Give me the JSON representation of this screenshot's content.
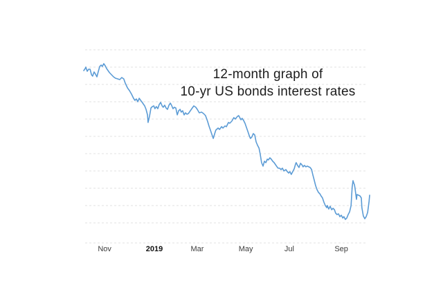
{
  "page": {
    "background": "#ffffff"
  },
  "chart_data": {
    "type": "line",
    "title_lines": [
      "12-month graph of",
      "10-yr US bonds interest rates"
    ],
    "xlabel": "",
    "ylabel": "",
    "legend": "none",
    "grid": "horizontal-dashed",
    "gridline_color": "#e2e2e2",
    "y_axis_labels_visible": false,
    "ylim": [
      1.168,
      3.4
    ],
    "y_gridlines": [
      3.4,
      3.2,
      3.0,
      2.8,
      2.6,
      2.4,
      2.2,
      2.0,
      1.8,
      1.6,
      1.4,
      1.168
    ],
    "x_ticks": [
      {
        "label": "Nov",
        "f": 0.073,
        "bold": false
      },
      {
        "label": "2019",
        "f": 0.247,
        "bold": true
      },
      {
        "label": "Mar",
        "f": 0.397,
        "bold": false
      },
      {
        "label": "May",
        "f": 0.567,
        "bold": false
      },
      {
        "label": "Jul",
        "f": 0.719,
        "bold": false
      },
      {
        "label": "Sep",
        "f": 0.901,
        "bold": false
      }
    ],
    "series": [
      {
        "name": "10-yr US bonds interest rate (%)",
        "color": "#5b9bd5",
        "points": [
          [
            0.0,
            3.16
          ],
          [
            0.005,
            3.184
          ],
          [
            0.007,
            3.2
          ],
          [
            0.012,
            3.152
          ],
          [
            0.017,
            3.176
          ],
          [
            0.022,
            3.176
          ],
          [
            0.027,
            3.112
          ],
          [
            0.031,
            3.096
          ],
          [
            0.036,
            3.144
          ],
          [
            0.041,
            3.12
          ],
          [
            0.046,
            3.088
          ],
          [
            0.051,
            3.152
          ],
          [
            0.056,
            3.208
          ],
          [
            0.061,
            3.224
          ],
          [
            0.065,
            3.208
          ],
          [
            0.07,
            3.24
          ],
          [
            0.075,
            3.216
          ],
          [
            0.08,
            3.184
          ],
          [
            0.085,
            3.16
          ],
          [
            0.09,
            3.136
          ],
          [
            0.097,
            3.112
          ],
          [
            0.104,
            3.088
          ],
          [
            0.111,
            3.072
          ],
          [
            0.119,
            3.064
          ],
          [
            0.126,
            3.056
          ],
          [
            0.133,
            3.08
          ],
          [
            0.14,
            3.064
          ],
          [
            0.145,
            3.016
          ],
          [
            0.153,
            2.96
          ],
          [
            0.16,
            2.928
          ],
          [
            0.167,
            2.888
          ],
          [
            0.174,
            2.84
          ],
          [
            0.179,
            2.816
          ],
          [
            0.184,
            2.832
          ],
          [
            0.189,
            2.8
          ],
          [
            0.194,
            2.84
          ],
          [
            0.199,
            2.816
          ],
          [
            0.203,
            2.8
          ],
          [
            0.208,
            2.776
          ],
          [
            0.213,
            2.752
          ],
          [
            0.218,
            2.712
          ],
          [
            0.223,
            2.648
          ],
          [
            0.225,
            2.56
          ],
          [
            0.23,
            2.632
          ],
          [
            0.235,
            2.728
          ],
          [
            0.24,
            2.744
          ],
          [
            0.245,
            2.752
          ],
          [
            0.249,
            2.72
          ],
          [
            0.254,
            2.744
          ],
          [
            0.259,
            2.72
          ],
          [
            0.264,
            2.768
          ],
          [
            0.269,
            2.792
          ],
          [
            0.274,
            2.752
          ],
          [
            0.278,
            2.736
          ],
          [
            0.283,
            2.76
          ],
          [
            0.288,
            2.728
          ],
          [
            0.293,
            2.712
          ],
          [
            0.298,
            2.76
          ],
          [
            0.303,
            2.784
          ],
          [
            0.307,
            2.76
          ],
          [
            0.312,
            2.72
          ],
          [
            0.317,
            2.736
          ],
          [
            0.322,
            2.728
          ],
          [
            0.327,
            2.648
          ],
          [
            0.332,
            2.696
          ],
          [
            0.337,
            2.712
          ],
          [
            0.341,
            2.68
          ],
          [
            0.346,
            2.696
          ],
          [
            0.351,
            2.648
          ],
          [
            0.356,
            2.672
          ],
          [
            0.361,
            2.656
          ],
          [
            0.366,
            2.664
          ],
          [
            0.373,
            2.696
          ],
          [
            0.378,
            2.72
          ],
          [
            0.385,
            2.752
          ],
          [
            0.392,
            2.736
          ],
          [
            0.397,
            2.712
          ],
          [
            0.404,
            2.672
          ],
          [
            0.412,
            2.68
          ],
          [
            0.419,
            2.664
          ],
          [
            0.426,
            2.64
          ],
          [
            0.433,
            2.576
          ],
          [
            0.438,
            2.52
          ],
          [
            0.443,
            2.472
          ],
          [
            0.448,
            2.424
          ],
          [
            0.453,
            2.376
          ],
          [
            0.458,
            2.432
          ],
          [
            0.462,
            2.472
          ],
          [
            0.47,
            2.496
          ],
          [
            0.475,
            2.48
          ],
          [
            0.482,
            2.512
          ],
          [
            0.487,
            2.496
          ],
          [
            0.494,
            2.52
          ],
          [
            0.499,
            2.512
          ],
          [
            0.506,
            2.56
          ],
          [
            0.511,
            2.552
          ],
          [
            0.518,
            2.576
          ],
          [
            0.525,
            2.616
          ],
          [
            0.53,
            2.6
          ],
          [
            0.538,
            2.632
          ],
          [
            0.542,
            2.64
          ],
          [
            0.55,
            2.592
          ],
          [
            0.554,
            2.608
          ],
          [
            0.559,
            2.584
          ],
          [
            0.564,
            2.552
          ],
          [
            0.569,
            2.504
          ],
          [
            0.574,
            2.456
          ],
          [
            0.579,
            2.408
          ],
          [
            0.583,
            2.376
          ],
          [
            0.588,
            2.392
          ],
          [
            0.593,
            2.432
          ],
          [
            0.598,
            2.416
          ],
          [
            0.603,
            2.336
          ],
          [
            0.608,
            2.296
          ],
          [
            0.613,
            2.264
          ],
          [
            0.617,
            2.2
          ],
          [
            0.622,
            2.096
          ],
          [
            0.627,
            2.056
          ],
          [
            0.632,
            2.112
          ],
          [
            0.637,
            2.096
          ],
          [
            0.642,
            2.136
          ],
          [
            0.646,
            2.128
          ],
          [
            0.651,
            2.152
          ],
          [
            0.656,
            2.136
          ],
          [
            0.661,
            2.112
          ],
          [
            0.666,
            2.096
          ],
          [
            0.671,
            2.072
          ],
          [
            0.676,
            2.048
          ],
          [
            0.68,
            2.032
          ],
          [
            0.685,
            2.032
          ],
          [
            0.69,
            2.016
          ],
          [
            0.695,
            2.032
          ],
          [
            0.7,
            2.0
          ],
          [
            0.707,
            2.016
          ],
          [
            0.712,
            1.992
          ],
          [
            0.717,
            1.976
          ],
          [
            0.721,
            1.992
          ],
          [
            0.726,
            1.96
          ],
          [
            0.731,
            1.992
          ],
          [
            0.736,
            2.024
          ],
          [
            0.741,
            2.08
          ],
          [
            0.743,
            2.096
          ],
          [
            0.748,
            2.064
          ],
          [
            0.753,
            2.04
          ],
          [
            0.758,
            2.088
          ],
          [
            0.763,
            2.072
          ],
          [
            0.767,
            2.048
          ],
          [
            0.772,
            2.064
          ],
          [
            0.777,
            2.048
          ],
          [
            0.782,
            2.056
          ],
          [
            0.787,
            2.048
          ],
          [
            0.792,
            2.04
          ],
          [
            0.797,
            2.016
          ],
          [
            0.801,
            1.96
          ],
          [
            0.806,
            1.896
          ],
          [
            0.811,
            1.832
          ],
          [
            0.816,
            1.784
          ],
          [
            0.821,
            1.752
          ],
          [
            0.826,
            1.736
          ],
          [
            0.83,
            1.712
          ],
          [
            0.835,
            1.688
          ],
          [
            0.84,
            1.64
          ],
          [
            0.845,
            1.6
          ],
          [
            0.85,
            1.576
          ],
          [
            0.852,
            1.6
          ],
          [
            0.857,
            1.56
          ],
          [
            0.862,
            1.592
          ],
          [
            0.867,
            1.552
          ],
          [
            0.872,
            1.568
          ],
          [
            0.877,
            1.552
          ],
          [
            0.881,
            1.512
          ],
          [
            0.886,
            1.496
          ],
          [
            0.891,
            1.504
          ],
          [
            0.896,
            1.472
          ],
          [
            0.901,
            1.488
          ],
          [
            0.906,
            1.456
          ],
          [
            0.91,
            1.472
          ],
          [
            0.915,
            1.44
          ],
          [
            0.92,
            1.456
          ],
          [
            0.925,
            1.496
          ],
          [
            0.93,
            1.528
          ],
          [
            0.935,
            1.6
          ],
          [
            0.937,
            1.712
          ],
          [
            0.939,
            1.816
          ],
          [
            0.942,
            1.888
          ],
          [
            0.944,
            1.864
          ],
          [
            0.947,
            1.84
          ],
          [
            0.949,
            1.8
          ],
          [
            0.951,
            1.744
          ],
          [
            0.954,
            1.672
          ],
          [
            0.956,
            1.728
          ],
          [
            0.961,
            1.72
          ],
          [
            0.966,
            1.712
          ],
          [
            0.971,
            1.688
          ],
          [
            0.973,
            1.576
          ],
          [
            0.978,
            1.48
          ],
          [
            0.983,
            1.448
          ],
          [
            0.988,
            1.472
          ],
          [
            0.993,
            1.52
          ],
          [
            0.998,
            1.648
          ],
          [
            1.0,
            1.72
          ]
        ]
      }
    ]
  }
}
